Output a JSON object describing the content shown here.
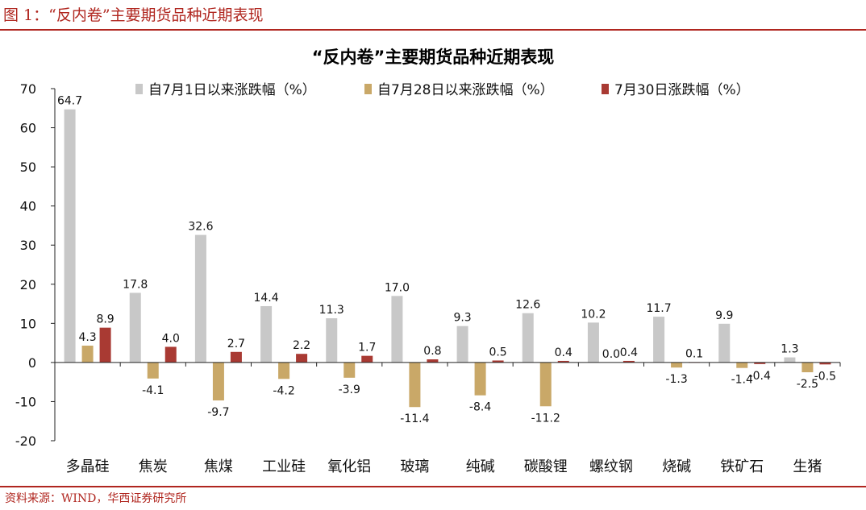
{
  "figure_title": "图 1：“反内卷”主要期货品种近期表现",
  "source": "资料来源：WIND，华西证券研究所",
  "colors": {
    "accent": "#b0261f",
    "series": [
      "#c8c8c8",
      "#c9a868",
      "#a93a33"
    ]
  },
  "chart_data": {
    "type": "bar",
    "title": "“反内卷”主要期货品种近期表现",
    "xlabel": "",
    "ylabel": "",
    "ylim": [
      -20,
      70
    ],
    "yticks": [
      70,
      60,
      50,
      40,
      30,
      20,
      10,
      0,
      -10,
      -20
    ],
    "grid": false,
    "legend": "top",
    "categories": [
      "多晶硅",
      "焦炭",
      "焦煤",
      "工业硅",
      "氧化铝",
      "玻璃",
      "纯碱",
      "碳酸锂",
      "螺纹钢",
      "烧碱",
      "铁矿石",
      "生猪"
    ],
    "series": [
      {
        "name": "自7月1日以来涨跌幅（%）",
        "values": [
          64.7,
          17.8,
          32.6,
          14.4,
          11.3,
          17.0,
          9.3,
          12.6,
          10.2,
          11.7,
          9.9,
          1.3
        ],
        "labels": [
          "64.7",
          "17.8",
          "32.6",
          "14.4",
          "11.3",
          "17.0",
          "9.3",
          "12.6",
          "10.2",
          "11.7",
          "9.9",
          "1.3"
        ]
      },
      {
        "name": "自7月28日以来涨跌幅（%）",
        "values": [
          4.3,
          -4.1,
          -9.7,
          -4.2,
          -3.9,
          -11.4,
          -8.4,
          -11.2,
          0.0,
          -1.3,
          -1.4,
          -2.5
        ],
        "labels": [
          "4.3",
          "-4.1",
          "-9.7",
          "-4.2",
          "-3.9",
          "-11.4",
          "-8.4",
          "-11.2",
          "0.0",
          "-1.3",
          "-1.4",
          "-2.5"
        ]
      },
      {
        "name": "7月30日涨跌幅（%）",
        "values": [
          8.9,
          4.0,
          2.7,
          2.2,
          1.7,
          0.8,
          0.5,
          0.4,
          0.4,
          0.1,
          -0.4,
          -0.5
        ],
        "labels": [
          "8.9",
          "4.0",
          "2.7",
          "2.2",
          "1.7",
          "0.8",
          "0.5",
          "0.4",
          "0.4",
          "0.1",
          "-0.4",
          "-0.5"
        ]
      }
    ]
  }
}
